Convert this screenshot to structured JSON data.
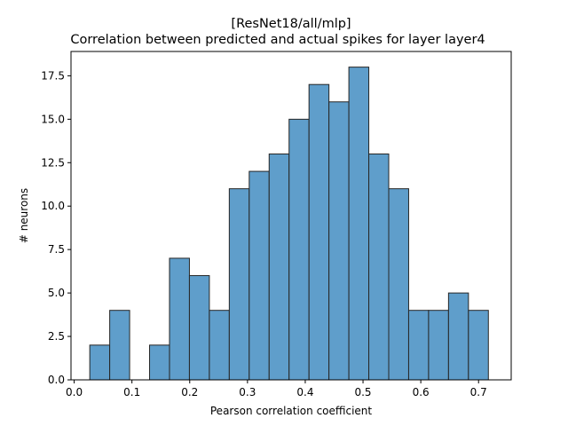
{
  "chart_data": {
    "type": "bar",
    "title": "[ResNet18/all/mlp]",
    "subtitle": "Correlation between predicted and actual spikes for layer layer4",
    "xlabel": "Pearson correlation coefficient",
    "ylabel": "# neurons",
    "xlim": [
      -0.0055,
      0.7565
    ],
    "ylim": [
      0,
      18.9
    ],
    "bin_edges": [
      0.027,
      0.0615,
      0.096,
      0.1305,
      0.165,
      0.1995,
      0.234,
      0.2685,
      0.303,
      0.3375,
      0.372,
      0.4065,
      0.441,
      0.4755,
      0.51,
      0.5445,
      0.579,
      0.6135,
      0.648,
      0.6825,
      0.717
    ],
    "values": [
      2,
      4,
      0,
      2,
      7,
      6,
      4,
      11,
      12,
      13,
      15,
      17,
      16,
      18,
      13,
      11,
      4,
      4,
      5,
      4
    ],
    "x_ticks": [
      {
        "value": 0.0,
        "label": "0.0"
      },
      {
        "value": 0.1,
        "label": "0.1"
      },
      {
        "value": 0.2,
        "label": "0.2"
      },
      {
        "value": 0.3,
        "label": "0.3"
      },
      {
        "value": 0.4,
        "label": "0.4"
      },
      {
        "value": 0.5,
        "label": "0.5"
      },
      {
        "value": 0.6,
        "label": "0.6"
      },
      {
        "value": 0.7,
        "label": "0.7"
      }
    ],
    "y_ticks": [
      {
        "value": 0.0,
        "label": "0.0"
      },
      {
        "value": 2.5,
        "label": "2.5"
      },
      {
        "value": 5.0,
        "label": "5.0"
      },
      {
        "value": 7.5,
        "label": "7.5"
      },
      {
        "value": 10.0,
        "label": "10.0"
      },
      {
        "value": 12.5,
        "label": "12.5"
      },
      {
        "value": 15.0,
        "label": "15.0"
      },
      {
        "value": 17.5,
        "label": "17.5"
      }
    ],
    "grid": false,
    "bar_color": "#5f9ecb",
    "bar_edge_color": "#262626"
  }
}
